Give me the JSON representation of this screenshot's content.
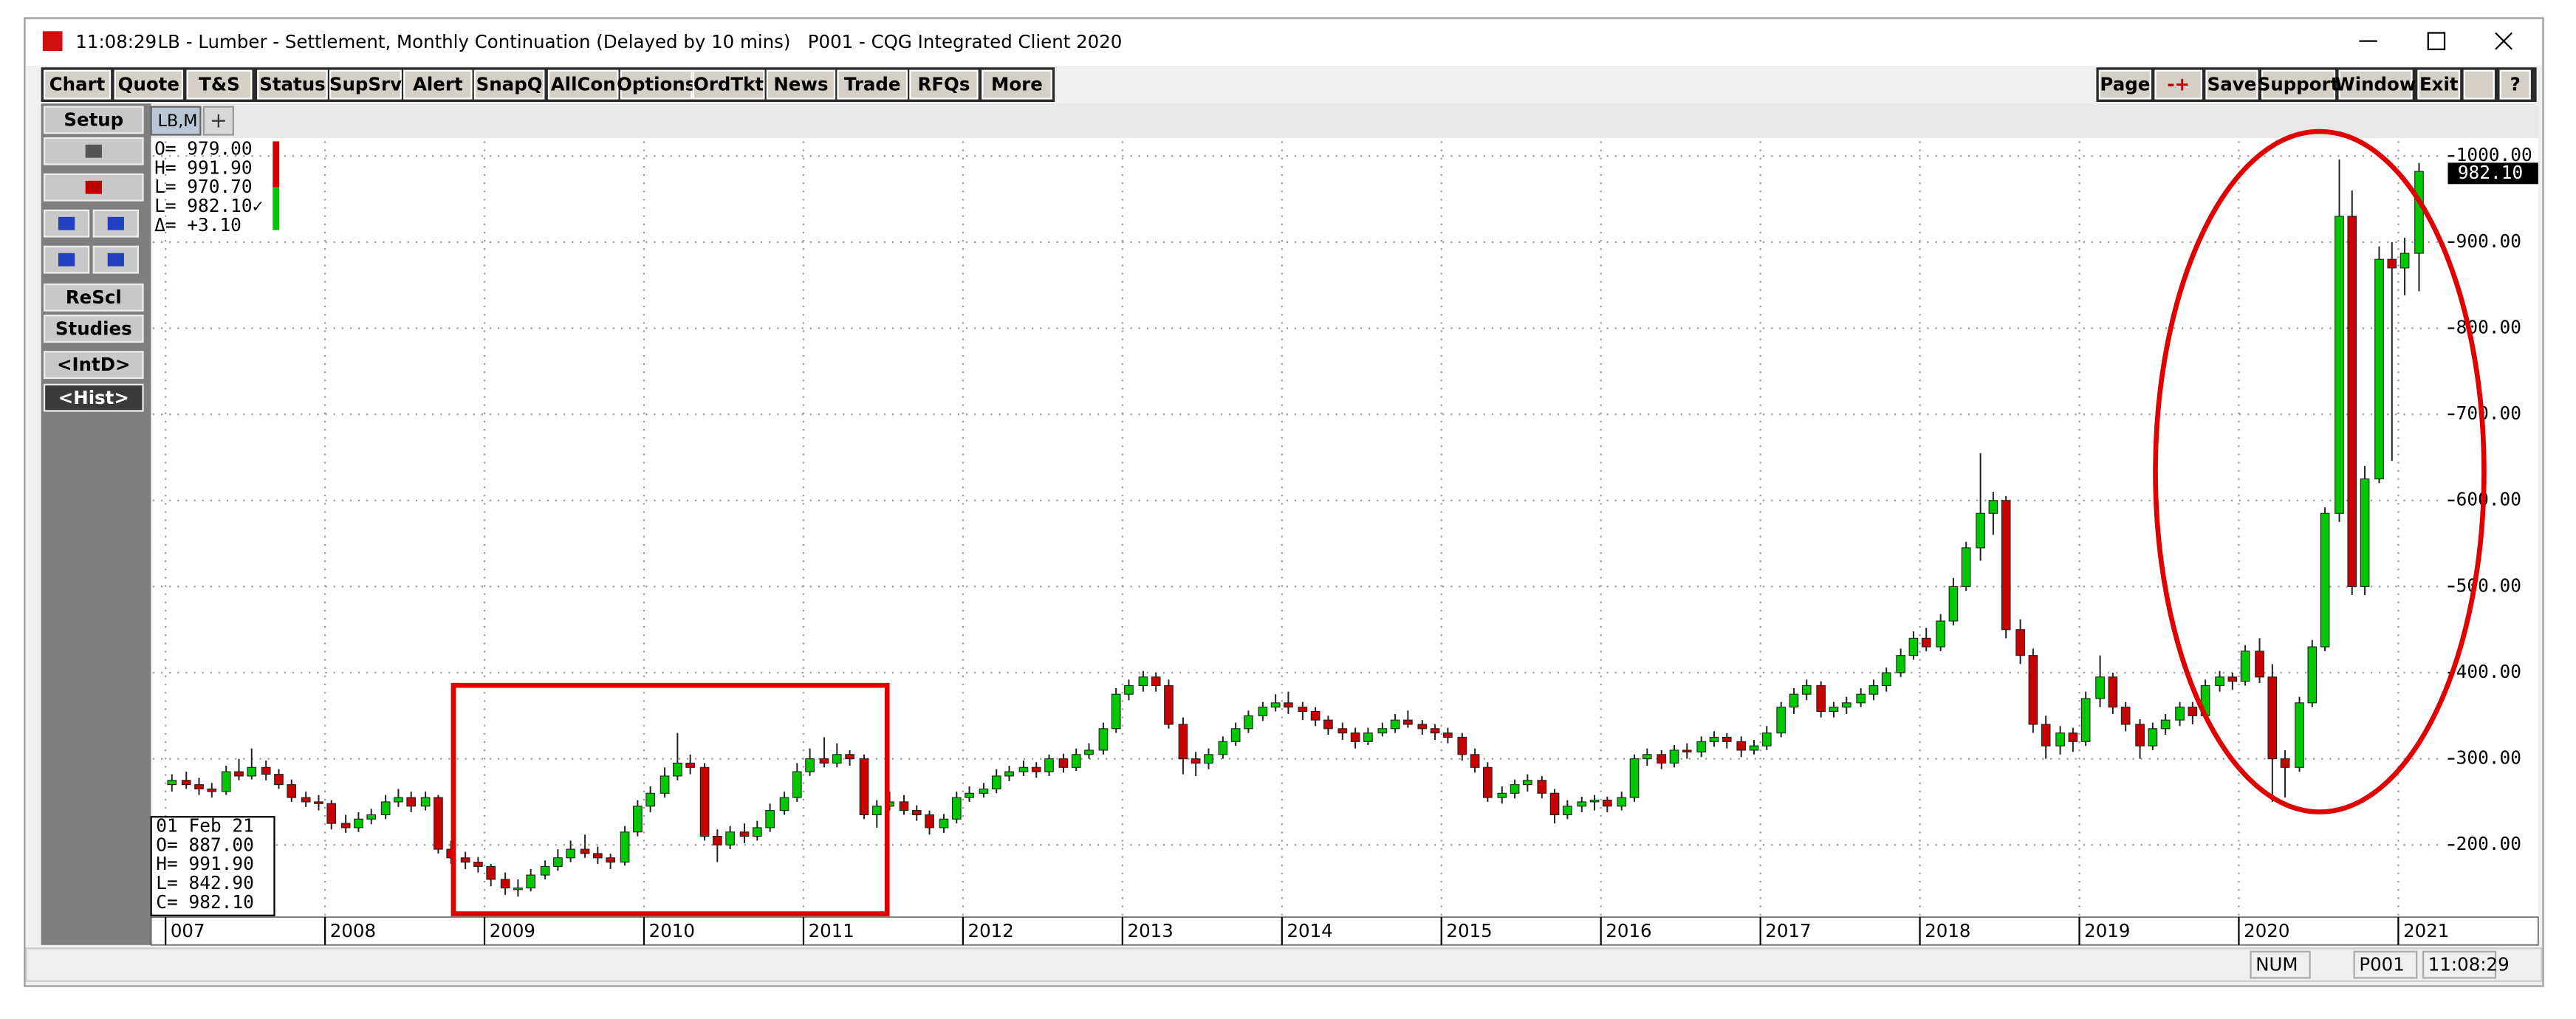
{
  "window": {
    "time": "11:08:29",
    "title": "LB - Lumber - Settlement, Monthly Continuation (Delayed by 10 mins)   P001 - CQG Integrated Client 2020"
  },
  "toolbar": [
    "Chart",
    "Quote",
    "T&S",
    "Status",
    "SupSrv",
    "Alert",
    "SnapQ",
    "AllCon",
    "Options",
    "OrdTkt",
    "News",
    "Trade",
    "RFQs",
    "More"
  ],
  "right_toolbar": [
    "Page",
    "-+",
    "Save",
    "Support",
    "Window",
    "Exit",
    "?"
  ],
  "side_buttons": [
    "Setup",
    "ReScl",
    "Studies",
    "<IntD>",
    "<Hist>"
  ],
  "tab": "LB,M",
  "ohlc_legend": [
    "O=  979.00",
    "H=  991.90",
    "L=  970.70",
    "L=  982.10✓",
    "Δ=   +3.10"
  ],
  "info_box": [
    "01  Feb 21",
    "O=  887.00",
    "H=  991.90",
    "L=  842.90",
    "C=  982.10"
  ],
  "last_price": "982.10",
  "status": [
    "NUM",
    "P001",
    "11:08:29"
  ],
  "chart_data": {
    "type": "candlestick",
    "up_color": "#00c800",
    "down_color": "#c80000",
    "grid": true,
    "xlim": [
      2006.92,
      2021.29
    ],
    "xticks": [
      {
        "value": 2007,
        "label": "007"
      },
      2008,
      2009,
      2010,
      2011,
      2012,
      2013,
      2014,
      2015,
      2016,
      2017,
      2018,
      2019,
      2020,
      2021
    ],
    "ylim": [
      120,
      1017
    ],
    "yticks": [
      {
        "value": 200,
        "label": "200.00"
      },
      {
        "value": 300,
        "label": "300.00"
      },
      {
        "value": 400,
        "label": "400.00"
      },
      {
        "value": 500,
        "label": "500.00"
      },
      {
        "value": 600,
        "label": "600.00"
      },
      {
        "value": 700,
        "label": "700.00"
      },
      {
        "value": 800,
        "label": "800.00"
      },
      {
        "value": 900,
        "label": "900.00"
      },
      {
        "value": 1000,
        "label": "1000.00"
      }
    ],
    "x": [
      2007.04,
      2007.13,
      2007.21,
      2007.29,
      2007.38,
      2007.46,
      2007.54,
      2007.63,
      2007.71,
      2007.79,
      2007.88,
      2007.96,
      2008.04,
      2008.13,
      2008.21,
      2008.29,
      2008.38,
      2008.46,
      2008.54,
      2008.63,
      2008.71,
      2008.79,
      2008.88,
      2008.96,
      2009.04,
      2009.13,
      2009.21,
      2009.29,
      2009.38,
      2009.46,
      2009.54,
      2009.63,
      2009.71,
      2009.79,
      2009.88,
      2009.96,
      2010.04,
      2010.13,
      2010.21,
      2010.29,
      2010.38,
      2010.46,
      2010.54,
      2010.63,
      2010.71,
      2010.79,
      2010.88,
      2010.96,
      2011.04,
      2011.13,
      2011.21,
      2011.29,
      2011.38,
      2011.46,
      2011.54,
      2011.63,
      2011.71,
      2011.79,
      2011.88,
      2011.96,
      2012.04,
      2012.13,
      2012.21,
      2012.29,
      2012.38,
      2012.46,
      2012.54,
      2012.63,
      2012.71,
      2012.79,
      2012.88,
      2012.96,
      2013.04,
      2013.13,
      2013.21,
      2013.29,
      2013.38,
      2013.46,
      2013.54,
      2013.63,
      2013.71,
      2013.79,
      2013.88,
      2013.96,
      2014.04,
      2014.13,
      2014.21,
      2014.29,
      2014.38,
      2014.46,
      2014.54,
      2014.63,
      2014.71,
      2014.79,
      2014.88,
      2014.96,
      2015.04,
      2015.13,
      2015.21,
      2015.29,
      2015.38,
      2015.46,
      2015.54,
      2015.63,
      2015.71,
      2015.79,
      2015.88,
      2015.96,
      2016.04,
      2016.13,
      2016.21,
      2016.29,
      2016.38,
      2016.46,
      2016.54,
      2016.63,
      2016.71,
      2016.79,
      2016.88,
      2016.96,
      2017.04,
      2017.13,
      2017.21,
      2017.29,
      2017.38,
      2017.46,
      2017.54,
      2017.63,
      2017.71,
      2017.79,
      2017.88,
      2017.96,
      2018.04,
      2018.13,
      2018.21,
      2018.29,
      2018.38,
      2018.46,
      2018.54,
      2018.63,
      2018.71,
      2018.79,
      2018.88,
      2018.96,
      2019.04,
      2019.13,
      2019.21,
      2019.29,
      2019.38,
      2019.46,
      2019.54,
      2019.63,
      2019.71,
      2019.79,
      2019.88,
      2019.96,
      2020.04,
      2020.13,
      2020.21,
      2020.29,
      2020.38,
      2020.46,
      2020.54,
      2020.63,
      2020.71,
      2020.79,
      2020.88,
      2020.96,
      2021.04,
      2021.13
    ],
    "values": [
      [
        270,
        282,
        262,
        275
      ],
      [
        275,
        285,
        265,
        270
      ],
      [
        270,
        278,
        258,
        265
      ],
      [
        265,
        272,
        255,
        262
      ],
      [
        262,
        292,
        258,
        285
      ],
      [
        285,
        300,
        275,
        280
      ],
      [
        280,
        312,
        276,
        290
      ],
      [
        290,
        298,
        275,
        282
      ],
      [
        282,
        288,
        265,
        270
      ],
      [
        270,
        276,
        250,
        255
      ],
      [
        255,
        262,
        244,
        250
      ],
      [
        250,
        258,
        240,
        248
      ],
      [
        248,
        252,
        218,
        225
      ],
      [
        225,
        235,
        214,
        220
      ],
      [
        220,
        238,
        215,
        230
      ],
      [
        230,
        242,
        224,
        235
      ],
      [
        235,
        258,
        230,
        250
      ],
      [
        250,
        265,
        244,
        255
      ],
      [
        255,
        262,
        238,
        245
      ],
      [
        245,
        262,
        240,
        255
      ],
      [
        255,
        258,
        190,
        195
      ],
      [
        195,
        205,
        178,
        185
      ],
      [
        185,
        192,
        172,
        180
      ],
      [
        180,
        186,
        168,
        175
      ],
      [
        175,
        178,
        152,
        160
      ],
      [
        160,
        168,
        142,
        150
      ],
      [
        150,
        160,
        140,
        150
      ],
      [
        150,
        172,
        146,
        165
      ],
      [
        165,
        182,
        160,
        175
      ],
      [
        175,
        195,
        170,
        185
      ],
      [
        185,
        205,
        180,
        195
      ],
      [
        195,
        212,
        185,
        190
      ],
      [
        190,
        198,
        178,
        185
      ],
      [
        185,
        190,
        172,
        180
      ],
      [
        180,
        222,
        176,
        215
      ],
      [
        215,
        252,
        210,
        245
      ],
      [
        245,
        268,
        238,
        260
      ],
      [
        260,
        290,
        255,
        280
      ],
      [
        280,
        330,
        275,
        295
      ],
      [
        295,
        305,
        282,
        290
      ],
      [
        290,
        295,
        205,
        210
      ],
      [
        210,
        218,
        180,
        200
      ],
      [
        200,
        222,
        195,
        215
      ],
      [
        215,
        225,
        202,
        210
      ],
      [
        210,
        228,
        205,
        220
      ],
      [
        220,
        248,
        215,
        240
      ],
      [
        240,
        262,
        235,
        255
      ],
      [
        255,
        295,
        250,
        285
      ],
      [
        285,
        312,
        280,
        300
      ],
      [
        300,
        325,
        290,
        295
      ],
      [
        295,
        318,
        290,
        305
      ],
      [
        305,
        310,
        292,
        300
      ],
      [
        300,
        305,
        230,
        235
      ],
      [
        235,
        252,
        220,
        245
      ],
      [
        245,
        262,
        240,
        250
      ],
      [
        250,
        258,
        235,
        240
      ],
      [
        240,
        246,
        228,
        235
      ],
      [
        235,
        240,
        212,
        220
      ],
      [
        220,
        236,
        214,
        230
      ],
      [
        230,
        262,
        225,
        255
      ],
      [
        255,
        268,
        250,
        260
      ],
      [
        260,
        272,
        255,
        265
      ],
      [
        265,
        288,
        260,
        280
      ],
      [
        280,
        292,
        274,
        285
      ],
      [
        285,
        298,
        280,
        290
      ],
      [
        290,
        296,
        278,
        285
      ],
      [
        285,
        305,
        280,
        300
      ],
      [
        300,
        306,
        284,
        290
      ],
      [
        290,
        312,
        286,
        305
      ],
      [
        305,
        318,
        300,
        310
      ],
      [
        310,
        342,
        305,
        335
      ],
      [
        335,
        382,
        330,
        375
      ],
      [
        375,
        392,
        368,
        385
      ],
      [
        385,
        402,
        378,
        395
      ],
      [
        395,
        400,
        378,
        385
      ],
      [
        385,
        392,
        335,
        340
      ],
      [
        340,
        348,
        282,
        300
      ],
      [
        300,
        308,
        280,
        295
      ],
      [
        295,
        312,
        288,
        305
      ],
      [
        305,
        326,
        300,
        320
      ],
      [
        320,
        342,
        315,
        335
      ],
      [
        335,
        356,
        330,
        350
      ],
      [
        350,
        366,
        344,
        360
      ],
      [
        360,
        375,
        355,
        365
      ],
      [
        365,
        378,
        352,
        360
      ],
      [
        360,
        366,
        345,
        355
      ],
      [
        355,
        360,
        338,
        345
      ],
      [
        345,
        350,
        328,
        335
      ],
      [
        335,
        342,
        322,
        330
      ],
      [
        330,
        336,
        312,
        320
      ],
      [
        320,
        336,
        316,
        330
      ],
      [
        330,
        342,
        326,
        335
      ],
      [
        335,
        352,
        330,
        345
      ],
      [
        345,
        356,
        336,
        340
      ],
      [
        340,
        345,
        328,
        335
      ],
      [
        335,
        340,
        322,
        330
      ],
      [
        330,
        336,
        318,
        325
      ],
      [
        325,
        330,
        298,
        305
      ],
      [
        305,
        312,
        284,
        290
      ],
      [
        290,
        296,
        250,
        255
      ],
      [
        255,
        268,
        248,
        260
      ],
      [
        260,
        276,
        254,
        270
      ],
      [
        270,
        282,
        262,
        275
      ],
      [
        275,
        280,
        254,
        260
      ],
      [
        260,
        265,
        225,
        235
      ],
      [
        235,
        252,
        230,
        245
      ],
      [
        245,
        256,
        238,
        250
      ],
      [
        250,
        258,
        240,
        252
      ],
      [
        252,
        256,
        238,
        245
      ],
      [
        245,
        262,
        240,
        255
      ],
      [
        255,
        305,
        250,
        300
      ],
      [
        300,
        312,
        292,
        305
      ],
      [
        305,
        310,
        288,
        295
      ],
      [
        295,
        316,
        290,
        310
      ],
      [
        310,
        318,
        300,
        308
      ],
      [
        308,
        326,
        302,
        320
      ],
      [
        320,
        332,
        314,
        325
      ],
      [
        325,
        330,
        312,
        320
      ],
      [
        320,
        326,
        302,
        310
      ],
      [
        310,
        322,
        305,
        315
      ],
      [
        315,
        338,
        310,
        330
      ],
      [
        330,
        366,
        325,
        360
      ],
      [
        360,
        382,
        352,
        375
      ],
      [
        375,
        392,
        368,
        385
      ],
      [
        385,
        390,
        348,
        355
      ],
      [
        355,
        366,
        348,
        360
      ],
      [
        360,
        372,
        352,
        365
      ],
      [
        365,
        382,
        360,
        375
      ],
      [
        375,
        392,
        368,
        385
      ],
      [
        385,
        406,
        378,
        400
      ],
      [
        400,
        428,
        395,
        420
      ],
      [
        420,
        448,
        415,
        440
      ],
      [
        440,
        452,
        425,
        430
      ],
      [
        430,
        468,
        425,
        460
      ],
      [
        460,
        510,
        455,
        500
      ],
      [
        500,
        552,
        495,
        545
      ],
      [
        545,
        655,
        530,
        585
      ],
      [
        585,
        610,
        560,
        600
      ],
      [
        600,
        605,
        440,
        450
      ],
      [
        450,
        462,
        410,
        420
      ],
      [
        420,
        428,
        330,
        340
      ],
      [
        340,
        350,
        300,
        315
      ],
      [
        315,
        338,
        305,
        330
      ],
      [
        330,
        336,
        308,
        320
      ],
      [
        320,
        378,
        315,
        370
      ],
      [
        370,
        420,
        360,
        395
      ],
      [
        395,
        400,
        352,
        360
      ],
      [
        360,
        366,
        332,
        340
      ],
      [
        340,
        346,
        300,
        315
      ],
      [
        315,
        342,
        310,
        335
      ],
      [
        335,
        352,
        328,
        345
      ],
      [
        345,
        366,
        338,
        360
      ],
      [
        360,
        366,
        340,
        350
      ],
      [
        350,
        392,
        345,
        385
      ],
      [
        385,
        402,
        378,
        395
      ],
      [
        395,
        400,
        380,
        390
      ],
      [
        390,
        432,
        385,
        425
      ],
      [
        425,
        440,
        388,
        395
      ],
      [
        395,
        410,
        250,
        300
      ],
      [
        300,
        310,
        255,
        290
      ],
      [
        290,
        372,
        285,
        365
      ],
      [
        365,
        438,
        360,
        430
      ],
      [
        430,
        592,
        425,
        585
      ],
      [
        585,
        996,
        575,
        930
      ],
      [
        930,
        960,
        490,
        500
      ],
      [
        500,
        640,
        490,
        625
      ],
      [
        625,
        895,
        620,
        880
      ],
      [
        880,
        900,
        646,
        870
      ],
      [
        870,
        905,
        838,
        887
      ],
      [
        887,
        991.9,
        842.9,
        982.1
      ]
    ]
  }
}
